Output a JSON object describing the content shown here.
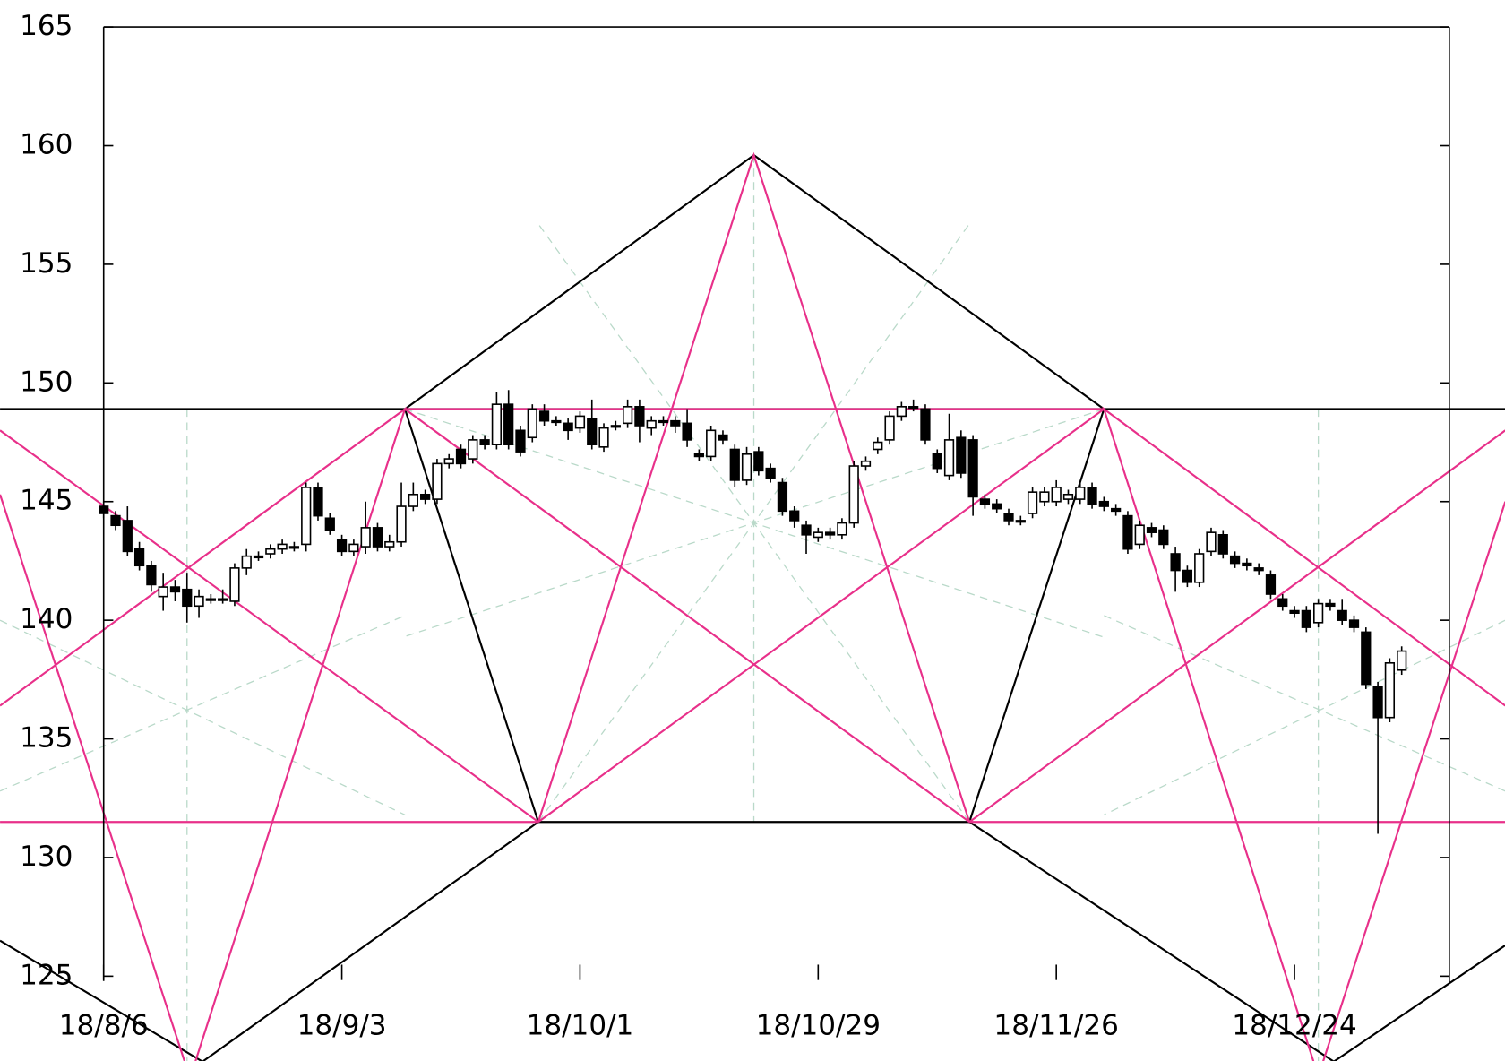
{
  "chart_data": {
    "type": "candlestick",
    "categories": [
      "18/8/6",
      null,
      null,
      null,
      null,
      null,
      null,
      null,
      null,
      null,
      null,
      null,
      null,
      null,
      null,
      null,
      null,
      null,
      null,
      null,
      "18/9/3",
      null,
      null,
      null,
      null,
      null,
      null,
      null,
      null,
      null,
      null,
      null,
      null,
      null,
      null,
      null,
      null,
      null,
      null,
      null,
      "18/10/1",
      null,
      null,
      null,
      null,
      null,
      null,
      null,
      null,
      null,
      null,
      null,
      null,
      null,
      null,
      null,
      null,
      null,
      null,
      null,
      "18/10/29",
      null,
      null,
      null,
      null,
      null,
      null,
      null,
      null,
      null,
      null,
      null,
      null,
      null,
      null,
      null,
      null,
      null,
      null,
      null,
      "18/11/26",
      null,
      null,
      null,
      null,
      null,
      null,
      null,
      null,
      null,
      null,
      null,
      null,
      null,
      null,
      null,
      null,
      null,
      null,
      null,
      "18/12/24",
      null,
      null,
      null,
      null,
      null,
      null,
      null,
      null,
      null
    ],
    "open": [
      144.8,
      144.4,
      144.2,
      143.0,
      142.3,
      141.0,
      141.4,
      141.3,
      140.6,
      140.9,
      140.9,
      140.8,
      142.2,
      142.7,
      142.8,
      143.0,
      143.1,
      143.2,
      145.6,
      144.3,
      143.4,
      142.9,
      143.1,
      143.9,
      143.1,
      143.3,
      144.8,
      145.3,
      145.1,
      146.6,
      147.2,
      146.8,
      147.6,
      147.4,
      149.1,
      148.0,
      147.7,
      148.8,
      148.4,
      148.3,
      148.1,
      148.5,
      147.3,
      148.2,
      148.3,
      149.0,
      148.1,
      148.4,
      148.4,
      148.3,
      147.0,
      146.9,
      147.8,
      147.2,
      145.9,
      147.1,
      146.4,
      145.8,
      144.6,
      144.0,
      143.5,
      143.7,
      143.6,
      144.1,
      146.5,
      147.2,
      147.6,
      148.6,
      149.0,
      148.9,
      147.0,
      146.1,
      147.7,
      147.6,
      145.1,
      144.9,
      144.5,
      144.2,
      144.5,
      145.0,
      145.0,
      145.1,
      145.1,
      145.6,
      145.0,
      144.7,
      144.4,
      143.2,
      143.9,
      143.8,
      142.8,
      142.1,
      141.6,
      142.9,
      143.6,
      142.7,
      142.4,
      142.2,
      141.9,
      140.9,
      140.4,
      140.4,
      139.9,
      140.7,
      140.4,
      140.0,
      139.5,
      137.2,
      135.9,
      137.9
    ],
    "high": [
      145.0,
      144.6,
      144.8,
      143.3,
      142.5,
      142.0,
      141.7,
      142.0,
      141.3,
      141.1,
      141.3,
      142.4,
      143.0,
      142.9,
      143.2,
      143.4,
      143.3,
      145.8,
      145.8,
      144.5,
      143.6,
      143.4,
      145.0,
      144.1,
      143.6,
      145.8,
      145.8,
      145.5,
      146.8,
      147.0,
      147.4,
      147.8,
      147.8,
      149.6,
      149.7,
      148.2,
      149.1,
      149.1,
      148.6,
      148.5,
      148.8,
      149.3,
      148.3,
      148.4,
      149.3,
      149.3,
      148.6,
      148.6,
      148.6,
      148.9,
      147.2,
      148.2,
      148.0,
      147.4,
      147.3,
      147.3,
      146.6,
      146.0,
      144.8,
      144.2,
      143.9,
      143.9,
      144.3,
      146.7,
      146.9,
      147.7,
      148.8,
      149.2,
      149.3,
      149.1,
      147.2,
      148.7,
      148.0,
      147.8,
      145.3,
      145.1,
      144.7,
      144.4,
      145.6,
      145.6,
      145.9,
      145.5,
      145.8,
      145.8,
      145.2,
      144.9,
      144.6,
      144.2,
      144.1,
      144.0,
      143.1,
      142.3,
      143.0,
      143.9,
      143.8,
      142.9,
      142.6,
      142.4,
      142.1,
      141.1,
      140.6,
      140.6,
      140.9,
      140.9,
      140.9,
      140.2,
      139.7,
      137.4,
      138.4,
      138.9
    ],
    "low": [
      144.3,
      143.8,
      142.7,
      142.1,
      141.2,
      140.4,
      140.8,
      139.9,
      140.1,
      140.7,
      140.7,
      140.6,
      141.9,
      142.5,
      142.6,
      142.8,
      142.9,
      142.9,
      144.2,
      143.6,
      142.7,
      142.7,
      142.8,
      142.9,
      142.9,
      143.1,
      144.6,
      144.9,
      144.9,
      146.4,
      146.4,
      146.6,
      147.2,
      147.2,
      147.2,
      146.9,
      147.5,
      148.2,
      148.2,
      147.6,
      147.9,
      147.2,
      147.1,
      148.0,
      148.1,
      147.5,
      147.8,
      148.2,
      147.9,
      147.3,
      146.7,
      146.7,
      147.4,
      145.6,
      145.7,
      146.1,
      145.8,
      144.4,
      143.9,
      142.8,
      143.3,
      143.4,
      143.4,
      143.9,
      146.3,
      147.0,
      147.4,
      148.4,
      148.8,
      147.4,
      146.2,
      145.9,
      146.0,
      144.4,
      144.7,
      144.5,
      144.0,
      144.0,
      144.3,
      144.8,
      144.8,
      144.9,
      144.9,
      144.7,
      144.6,
      144.4,
      142.8,
      143.0,
      143.5,
      143.0,
      141.2,
      141.4,
      141.4,
      142.7,
      142.6,
      142.2,
      142.1,
      141.9,
      140.9,
      140.4,
      140.1,
      139.5,
      139.7,
      140.4,
      139.8,
      139.5,
      137.1,
      131.0,
      135.7,
      137.7
    ],
    "close": [
      144.5,
      144.0,
      142.9,
      142.3,
      141.5,
      141.4,
      141.2,
      140.6,
      141.0,
      140.9,
      140.9,
      142.2,
      142.7,
      142.7,
      143.0,
      143.2,
      143.1,
      145.6,
      144.4,
      143.8,
      142.9,
      143.2,
      143.9,
      143.1,
      143.3,
      144.8,
      145.3,
      145.1,
      146.6,
      146.8,
      146.6,
      147.6,
      147.4,
      149.1,
      147.4,
      147.1,
      148.9,
      148.4,
      148.4,
      148.0,
      148.6,
      147.4,
      148.1,
      148.2,
      149.0,
      148.2,
      148.4,
      148.4,
      148.2,
      147.6,
      146.9,
      148.0,
      147.6,
      145.9,
      147.0,
      146.3,
      146.0,
      144.6,
      144.2,
      143.6,
      143.7,
      143.6,
      144.1,
      146.5,
      146.7,
      147.5,
      148.6,
      149.0,
      149.0,
      147.6,
      146.4,
      147.6,
      146.2,
      145.2,
      144.9,
      144.7,
      144.2,
      144.2,
      145.4,
      145.4,
      145.6,
      145.3,
      145.6,
      144.9,
      144.8,
      144.6,
      143.0,
      144.0,
      143.7,
      143.2,
      142.1,
      141.6,
      142.8,
      143.7,
      142.8,
      142.4,
      142.3,
      142.1,
      141.1,
      140.6,
      140.3,
      139.7,
      140.7,
      140.6,
      140.0,
      139.7,
      137.3,
      135.9,
      138.2,
      138.7
    ],
    "colors": {
      "up": "#ffffff",
      "down": "#000000",
      "outline": "#000000"
    },
    "xlim": [
      0,
      113
    ],
    "ylim": [
      125,
      165
    ],
    "yticks": [
      125,
      130,
      135,
      140,
      145,
      150,
      155,
      160,
      165
    ],
    "overlays": [
      {
        "color": "#b9d9c9",
        "dash": true,
        "points": [
          [
            7.0,
            148.9
          ],
          [
            7.0,
            121.4
          ]
        ]
      },
      {
        "color": "#b9d9c9",
        "dash": true,
        "points": [
          [
            54.6,
            159.6
          ],
          [
            54.6,
            131.5
          ]
        ]
      },
      {
        "color": "#b9d9c9",
        "dash": true,
        "points": [
          [
            102.0,
            148.9
          ],
          [
            102.0,
            121.4
          ]
        ]
      },
      {
        "color": "#b9d9c9",
        "dash": true,
        "points": [
          [
            25.3,
            148.9
          ],
          [
            83.9,
            139.3
          ]
        ]
      },
      {
        "color": "#b9d9c9",
        "dash": true,
        "points": [
          [
            84.0,
            148.9
          ],
          [
            25.2,
            139.3
          ]
        ]
      },
      {
        "color": "#b9d9c9",
        "dash": true,
        "points": [
          [
            36.5,
            131.5
          ],
          [
            72.7,
            156.7
          ]
        ]
      },
      {
        "color": "#b9d9c9",
        "dash": true,
        "points": [
          [
            72.7,
            131.5
          ],
          [
            36.5,
            156.7
          ]
        ]
      },
      {
        "color": "#b9d9c9",
        "dash": true,
        "points": [
          [
            -8.7,
            132.8
          ],
          [
            25.3,
            140.2
          ]
        ]
      },
      {
        "color": "#b9d9c9",
        "dash": true,
        "points": [
          [
            -8.7,
            140.0
          ],
          [
            25.3,
            131.8
          ]
        ]
      },
      {
        "color": "#b9d9c9",
        "dash": true,
        "points": [
          [
            117.7,
            132.8
          ],
          [
            84.0,
            140.2
          ]
        ]
      },
      {
        "color": "#b9d9c9",
        "dash": true,
        "points": [
          [
            117.7,
            140.0
          ],
          [
            84.0,
            131.8
          ]
        ]
      },
      {
        "color": "#000000",
        "dash": false,
        "points": [
          [
            -8.7,
            148.9
          ],
          [
            117.7,
            148.9
          ]
        ]
      },
      {
        "color": "#000000",
        "dash": false,
        "points": [
          [
            36.5,
            131.5
          ],
          [
            72.7,
            131.5
          ]
        ]
      },
      {
        "color": "#000000",
        "dash": false,
        "points": [
          [
            25.3,
            148.9
          ],
          [
            54.6,
            159.6
          ],
          [
            84.0,
            148.9
          ]
        ]
      },
      {
        "color": "#000000",
        "dash": false,
        "points": [
          [
            25.3,
            148.9
          ],
          [
            36.5,
            131.5
          ]
        ]
      },
      {
        "color": "#000000",
        "dash": false,
        "points": [
          [
            84.0,
            148.9
          ],
          [
            72.7,
            131.5
          ]
        ]
      },
      {
        "color": "#000000",
        "dash": false,
        "points": [
          [
            36.5,
            131.5
          ],
          [
            8.3,
            121.4
          ]
        ]
      },
      {
        "color": "#000000",
        "dash": false,
        "points": [
          [
            -8.7,
            126.5
          ],
          [
            8.3,
            121.4
          ]
        ]
      },
      {
        "color": "#000000",
        "dash": false,
        "points": [
          [
            72.7,
            131.5
          ],
          [
            103.3,
            121.4
          ]
        ]
      },
      {
        "color": "#000000",
        "dash": false,
        "points": [
          [
            117.7,
            126.3
          ],
          [
            103.3,
            121.4
          ]
        ]
      },
      {
        "color": "#e8308a",
        "dash": false,
        "points": [
          [
            25.3,
            148.9
          ],
          [
            84.0,
            148.9
          ]
        ]
      },
      {
        "color": "#e8308a",
        "dash": false,
        "points": [
          [
            -8.7,
            131.5
          ],
          [
            36.5,
            131.5
          ]
        ]
      },
      {
        "color": "#e8308a",
        "dash": false,
        "points": [
          [
            72.7,
            131.5
          ],
          [
            117.7,
            131.5
          ]
        ]
      },
      {
        "color": "#e8308a",
        "dash": false,
        "points": [
          [
            36.5,
            131.5
          ],
          [
            54.6,
            159.6
          ],
          [
            72.7,
            131.5
          ]
        ]
      },
      {
        "color": "#e8308a",
        "dash": false,
        "points": [
          [
            25.3,
            148.9
          ],
          [
            72.7,
            131.5
          ]
        ]
      },
      {
        "color": "#e8308a",
        "dash": false,
        "points": [
          [
            84.0,
            148.9
          ],
          [
            36.5,
            131.5
          ]
        ]
      },
      {
        "color": "#e8308a",
        "dash": false,
        "points": [
          [
            -8.7,
            136.4
          ],
          [
            25.3,
            148.9
          ],
          [
            7.7,
            121.4
          ]
        ]
      },
      {
        "color": "#e8308a",
        "dash": false,
        "points": [
          [
            117.7,
            136.4
          ],
          [
            84.0,
            148.9
          ],
          [
            101.6,
            121.4
          ]
        ]
      },
      {
        "color": "#e8308a",
        "dash": false,
        "points": [
          [
            -8.7,
            148.0
          ],
          [
            36.5,
            131.5
          ]
        ]
      },
      {
        "color": "#e8308a",
        "dash": false,
        "points": [
          [
            72.7,
            131.5
          ],
          [
            117.7,
            148.0
          ]
        ]
      },
      {
        "color": "#e8308a",
        "dash": false,
        "points": [
          [
            -8.7,
            145.3
          ],
          [
            6.8,
            121.4
          ]
        ]
      },
      {
        "color": "#e8308a",
        "dash": false,
        "points": [
          [
            117.7,
            145.0
          ],
          [
            102.4,
            121.4
          ]
        ]
      }
    ]
  }
}
